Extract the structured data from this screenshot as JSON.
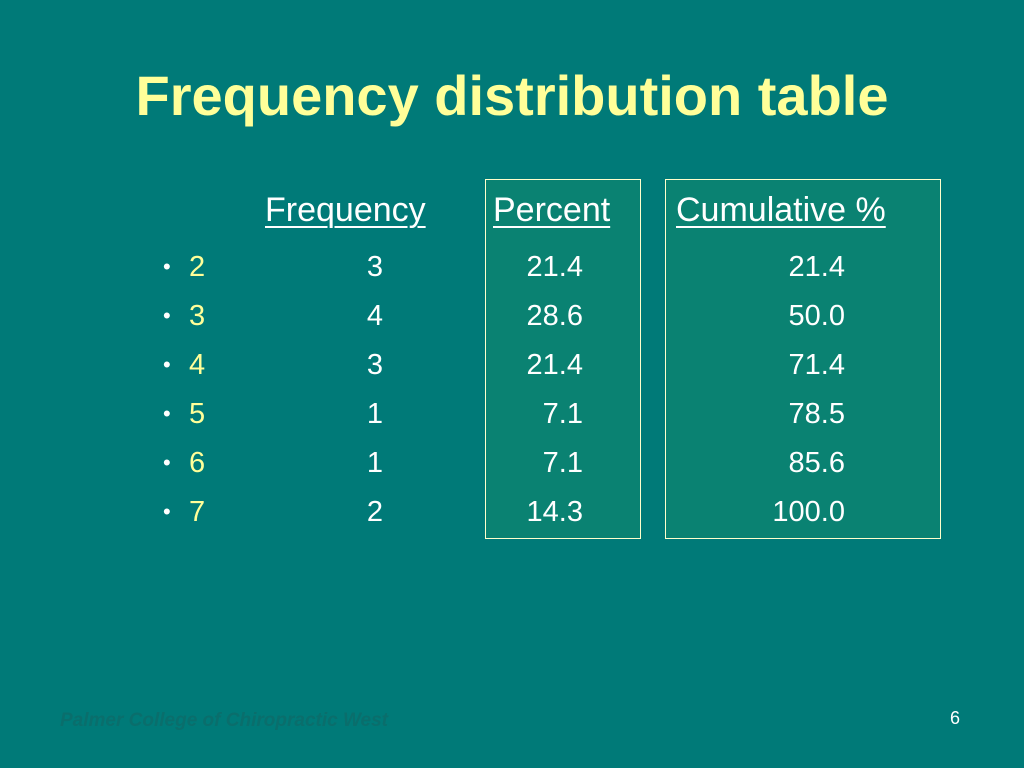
{
  "title": "Frequency distribution table",
  "headers": {
    "frequency": "Frequency",
    "percent": "Percent",
    "cumulative": "Cumulative %"
  },
  "bullet": "•",
  "rows": [
    {
      "value": "2",
      "frequency": "3",
      "percent": "21.4",
      "cumulative": "21.4"
    },
    {
      "value": "3",
      "frequency": "4",
      "percent": "28.6",
      "cumulative": "50.0"
    },
    {
      "value": "4",
      "frequency": "3",
      "percent": "21.4",
      "cumulative": "71.4"
    },
    {
      "value": "5",
      "frequency": "1",
      "percent": "7.1",
      "cumulative": "78.5"
    },
    {
      "value": "6",
      "frequency": "1",
      "percent": "7.1",
      "cumulative": "85.6"
    },
    {
      "value": "7",
      "frequency": "2",
      "percent": "14.3",
      "cumulative": "100.0"
    }
  ],
  "footer": "Palmer College of Chiropractic West",
  "page_number": "6",
  "colors": {
    "background": "#007a78",
    "title": "#ffff99",
    "text": "#ffffff",
    "box_border": "#ffffcc"
  }
}
